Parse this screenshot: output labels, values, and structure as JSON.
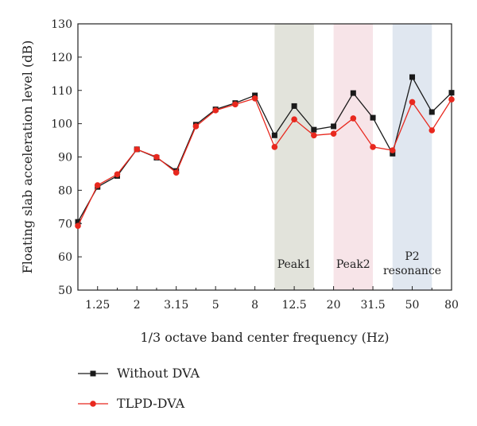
{
  "chart_data": {
    "type": "line",
    "title": "",
    "xlabel": "1/3 octave band center frequency (Hz)",
    "ylabel": "Floating slab acceleration level (dB)",
    "ylim": [
      50,
      130
    ],
    "yticks": [
      "50",
      "60",
      "70",
      "80",
      "90",
      "100",
      "110",
      "120",
      "130"
    ],
    "x": [
      1,
      1.25,
      1.6,
      2,
      2.5,
      3.15,
      4,
      5,
      6.3,
      8,
      10,
      12.5,
      16,
      20,
      25,
      31.5,
      40,
      50,
      63,
      80
    ],
    "xtick_labels": [
      "1.25",
      "2",
      "3.15",
      "5",
      "8",
      "12.5",
      "20",
      "31.5",
      "50",
      "80"
    ],
    "series": [
      {
        "name": "Without DVA",
        "color": "#1a1a1a",
        "marker": "square",
        "values": [
          70.5,
          81,
          84.3,
          92.3,
          89.8,
          85.8,
          99.7,
          104.3,
          106.2,
          108.5,
          96.5,
          105.3,
          98.2,
          99.2,
          109.2,
          101.8,
          91,
          114,
          103.5,
          109.3
        ]
      },
      {
        "name": "TLPD-DVA",
        "color": "#e8281e",
        "marker": "circle",
        "values": [
          69.3,
          81.5,
          84.8,
          92.3,
          90,
          85.3,
          99.2,
          104,
          105.8,
          107.6,
          93,
          101.3,
          96.5,
          97,
          101.6,
          93,
          92,
          106.5,
          98,
          107.3
        ]
      }
    ],
    "bands": [
      {
        "label": "Peak1",
        "x_from": 10,
        "x_to": 16,
        "color": "#e2e3db"
      },
      {
        "label": "Peak2",
        "x_from": 20,
        "x_to": 31.5,
        "color": "#f7e4e8"
      },
      {
        "label": "P2\nresonance",
        "x_from": 40,
        "x_to": 63,
        "color": "#e0e7f0"
      }
    ],
    "legend_position": "bottom-left"
  }
}
